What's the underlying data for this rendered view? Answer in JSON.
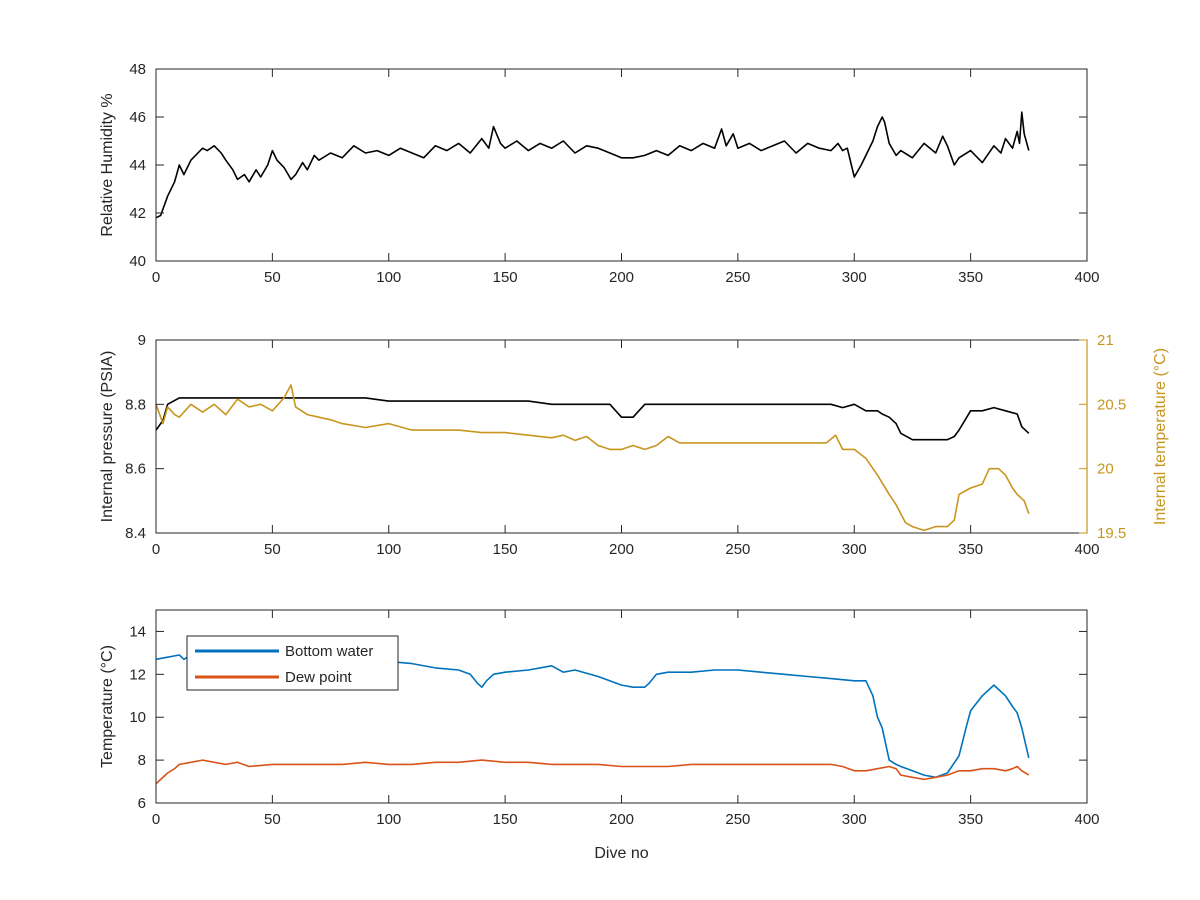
{
  "chart_data": [
    {
      "type": "line",
      "xlabel": "",
      "ylabel": "Relative Humidity %",
      "xlim": [
        0,
        400
      ],
      "ylim": [
        40,
        48
      ],
      "xticks": [
        0,
        50,
        100,
        150,
        200,
        250,
        300,
        350,
        400
      ],
      "yticks": [
        40,
        42,
        44,
        46,
        48
      ],
      "grid": false,
      "series": [
        {
          "color": "#000000",
          "x": [
            0,
            2,
            5,
            8,
            10,
            12,
            15,
            18,
            20,
            22,
            25,
            28,
            30,
            33,
            35,
            38,
            40,
            43,
            45,
            48,
            50,
            52,
            55,
            58,
            60,
            63,
            65,
            68,
            70,
            75,
            80,
            85,
            90,
            95,
            100,
            105,
            110,
            115,
            120,
            125,
            130,
            135,
            140,
            143,
            145,
            148,
            150,
            155,
            160,
            165,
            170,
            175,
            180,
            185,
            190,
            195,
            200,
            205,
            210,
            215,
            220,
            225,
            230,
            235,
            240,
            243,
            245,
            248,
            250,
            255,
            260,
            265,
            270,
            275,
            280,
            285,
            290,
            293,
            295,
            297,
            300,
            303,
            305,
            308,
            310,
            312,
            313,
            315,
            318,
            320,
            325,
            330,
            335,
            338,
            340,
            343,
            345,
            350,
            355,
            360,
            363,
            365,
            368,
            370,
            371,
            372,
            373,
            375
          ],
          "y": [
            41.8,
            41.9,
            42.7,
            43.3,
            44.0,
            43.6,
            44.2,
            44.5,
            44.7,
            44.6,
            44.8,
            44.5,
            44.2,
            43.8,
            43.4,
            43.6,
            43.3,
            43.8,
            43.5,
            44.0,
            44.6,
            44.2,
            43.9,
            43.4,
            43.6,
            44.1,
            43.8,
            44.4,
            44.2,
            44.5,
            44.3,
            44.8,
            44.5,
            44.6,
            44.4,
            44.7,
            44.5,
            44.3,
            44.8,
            44.6,
            44.9,
            44.5,
            45.1,
            44.7,
            45.6,
            44.9,
            44.7,
            45.0,
            44.6,
            44.9,
            44.7,
            45.0,
            44.5,
            44.8,
            44.7,
            44.5,
            44.3,
            44.3,
            44.4,
            44.6,
            44.4,
            44.8,
            44.6,
            44.9,
            44.7,
            45.5,
            44.8,
            45.3,
            44.7,
            44.9,
            44.6,
            44.8,
            45.0,
            44.5,
            44.9,
            44.7,
            44.6,
            44.9,
            44.6,
            44.7,
            43.5,
            44.0,
            44.4,
            45.0,
            45.6,
            46.0,
            45.8,
            44.9,
            44.4,
            44.6,
            44.3,
            44.9,
            44.5,
            45.2,
            44.8,
            44.0,
            44.3,
            44.6,
            44.1,
            44.8,
            44.5,
            45.1,
            44.7,
            45.4,
            44.9,
            46.2,
            45.3,
            44.6
          ]
        }
      ]
    },
    {
      "type": "line",
      "xlabel": "",
      "ylabel": "Internal pressure (PSIA)",
      "ylabel_right": "Internal temperature (°C)",
      "xlim": [
        0,
        400
      ],
      "ylim": [
        8.4,
        9
      ],
      "ylim_right": [
        19.5,
        21
      ],
      "xticks": [
        0,
        50,
        100,
        150,
        200,
        250,
        300,
        350,
        400
      ],
      "yticks": [
        8.4,
        8.6,
        8.8,
        9
      ],
      "yticks_right": [
        19.5,
        20,
        20.5,
        21
      ],
      "grid": false,
      "series": [
        {
          "axis": "left",
          "color": "#000000",
          "x": [
            0,
            3,
            5,
            10,
            20,
            30,
            40,
            50,
            60,
            70,
            80,
            90,
            100,
            110,
            120,
            130,
            140,
            150,
            160,
            170,
            180,
            190,
            195,
            200,
            205,
            210,
            220,
            230,
            240,
            250,
            260,
            270,
            280,
            290,
            295,
            300,
            305,
            310,
            312,
            315,
            318,
            320,
            325,
            330,
            335,
            340,
            343,
            345,
            350,
            355,
            360,
            365,
            370,
            372,
            375
          ],
          "y": [
            8.72,
            8.75,
            8.8,
            8.82,
            8.82,
            8.82,
            8.82,
            8.82,
            8.82,
            8.82,
            8.82,
            8.82,
            8.81,
            8.81,
            8.81,
            8.81,
            8.81,
            8.81,
            8.81,
            8.8,
            8.8,
            8.8,
            8.8,
            8.76,
            8.76,
            8.8,
            8.8,
            8.8,
            8.8,
            8.8,
            8.8,
            8.8,
            8.8,
            8.8,
            8.79,
            8.8,
            8.78,
            8.78,
            8.77,
            8.76,
            8.74,
            8.71,
            8.69,
            8.69,
            8.69,
            8.69,
            8.7,
            8.72,
            8.78,
            8.78,
            8.79,
            8.78,
            8.77,
            8.73,
            8.71
          ]
        },
        {
          "axis": "right",
          "color": "#C8961E",
          "x": [
            0,
            3,
            5,
            8,
            10,
            15,
            20,
            25,
            30,
            35,
            40,
            45,
            50,
            55,
            58,
            60,
            65,
            70,
            75,
            80,
            90,
            100,
            110,
            120,
            130,
            140,
            150,
            160,
            170,
            175,
            180,
            185,
            190,
            195,
            200,
            205,
            210,
            215,
            220,
            225,
            230,
            240,
            250,
            260,
            270,
            280,
            288,
            292,
            295,
            300,
            305,
            310,
            315,
            318,
            320,
            322,
            325,
            330,
            335,
            340,
            343,
            345,
            350,
            355,
            358,
            362,
            365,
            368,
            370,
            373,
            375
          ],
          "y": [
            20.5,
            20.35,
            20.48,
            20.42,
            20.4,
            20.5,
            20.44,
            20.5,
            20.42,
            20.54,
            20.48,
            20.5,
            20.45,
            20.55,
            20.65,
            20.48,
            20.42,
            20.4,
            20.38,
            20.35,
            20.32,
            20.35,
            20.3,
            20.3,
            20.3,
            20.28,
            20.28,
            20.26,
            20.24,
            20.26,
            20.22,
            20.25,
            20.18,
            20.15,
            20.15,
            20.18,
            20.15,
            20.18,
            20.25,
            20.2,
            20.2,
            20.2,
            20.2,
            20.2,
            20.2,
            20.2,
            20.2,
            20.26,
            20.15,
            20.15,
            20.08,
            19.95,
            19.8,
            19.72,
            19.65,
            19.58,
            19.55,
            19.52,
            19.55,
            19.55,
            19.6,
            19.8,
            19.85,
            19.88,
            20.0,
            20.0,
            19.95,
            19.85,
            19.8,
            19.75,
            19.65
          ]
        }
      ]
    },
    {
      "type": "line",
      "xlabel": "Dive no",
      "ylabel": "Temperature (°C)",
      "xlim": [
        0,
        400
      ],
      "ylim": [
        6,
        15
      ],
      "xticks": [
        0,
        50,
        100,
        150,
        200,
        250,
        300,
        350,
        400
      ],
      "yticks": [
        6,
        8,
        10,
        12,
        14
      ],
      "grid": false,
      "legend": "top-left",
      "series": [
        {
          "name": "Bottom water",
          "color": "#0072BD",
          "x": [
            0,
            5,
            10,
            12,
            15,
            20,
            30,
            40,
            50,
            60,
            70,
            80,
            90,
            100,
            110,
            120,
            130,
            135,
            138,
            140,
            142,
            145,
            150,
            160,
            170,
            175,
            180,
            190,
            200,
            205,
            210,
            212,
            215,
            220,
            230,
            240,
            250,
            260,
            270,
            280,
            290,
            300,
            305,
            308,
            310,
            312,
            315,
            318,
            320,
            325,
            330,
            335,
            340,
            345,
            348,
            350,
            355,
            360,
            365,
            368,
            370,
            372,
            375
          ],
          "y": [
            12.7,
            12.8,
            12.9,
            12.7,
            12.9,
            13.0,
            12.9,
            12.8,
            12.8,
            12.8,
            12.7,
            12.7,
            12.6,
            12.6,
            12.5,
            12.3,
            12.2,
            12.0,
            11.6,
            11.4,
            11.7,
            12.0,
            12.1,
            12.2,
            12.4,
            12.1,
            12.2,
            11.9,
            11.5,
            11.4,
            11.4,
            11.6,
            12.0,
            12.1,
            12.1,
            12.2,
            12.2,
            12.1,
            12.0,
            11.9,
            11.8,
            11.7,
            11.7,
            11.0,
            10.0,
            9.5,
            8.0,
            7.8,
            7.7,
            7.5,
            7.3,
            7.2,
            7.4,
            8.2,
            9.5,
            10.3,
            11.0,
            11.5,
            11.0,
            10.5,
            10.2,
            9.5,
            8.1
          ]
        },
        {
          "name": "Dew point",
          "color": "#D95319",
          "x": [
            0,
            2,
            5,
            8,
            10,
            15,
            20,
            25,
            30,
            35,
            40,
            50,
            60,
            70,
            80,
            90,
            100,
            110,
            120,
            130,
            140,
            150,
            160,
            170,
            180,
            190,
            200,
            210,
            220,
            230,
            240,
            250,
            260,
            270,
            280,
            290,
            295,
            300,
            305,
            310,
            315,
            318,
            320,
            325,
            330,
            335,
            340,
            345,
            350,
            355,
            360,
            365,
            368,
            370,
            372,
            375
          ],
          "y": [
            6.9,
            7.1,
            7.4,
            7.6,
            7.8,
            7.9,
            8.0,
            7.9,
            7.8,
            7.9,
            7.7,
            7.8,
            7.8,
            7.8,
            7.8,
            7.9,
            7.8,
            7.8,
            7.9,
            7.9,
            8.0,
            7.9,
            7.9,
            7.8,
            7.8,
            7.8,
            7.7,
            7.7,
            7.7,
            7.8,
            7.8,
            7.8,
            7.8,
            7.8,
            7.8,
            7.8,
            7.7,
            7.5,
            7.5,
            7.6,
            7.7,
            7.6,
            7.3,
            7.2,
            7.1,
            7.2,
            7.3,
            7.5,
            7.5,
            7.6,
            7.6,
            7.5,
            7.6,
            7.7,
            7.5,
            7.3
          ]
        }
      ]
    }
  ]
}
